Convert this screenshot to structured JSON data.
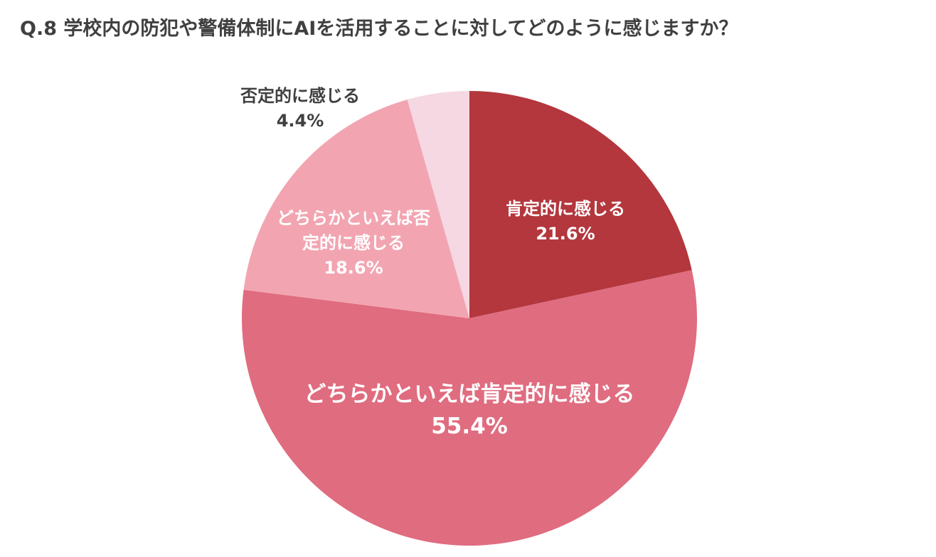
{
  "chart_data": {
    "type": "pie",
    "title": "Q.8 学校内の防犯や警備体制にAIを活用することに対してどのように感じますか？",
    "categories": [
      "肯定的に感じる",
      "どちらかといえば肯定的に感じる",
      "どちらかといえば否定的に感じる",
      "否定的に感じる"
    ],
    "values": [
      21.6,
      55.4,
      18.6,
      4.4
    ],
    "value_labels": [
      "21.6%",
      "55.4%",
      "18.6%",
      "4.4%"
    ],
    "colors": [
      "#b3373d",
      "#e06c7f",
      "#f2a5b1",
      "#f5d8e1"
    ]
  }
}
